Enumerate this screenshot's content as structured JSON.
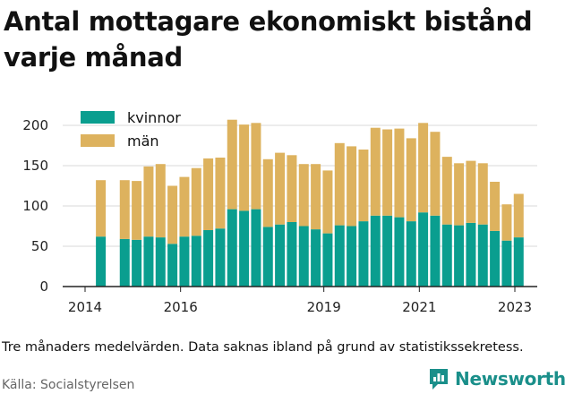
{
  "title": "Antal mottagare ekonomiskt bistånd varje månad",
  "note": "Tre månaders medelvärden. Data saknas ibland på grund av statistikssekretess.",
  "source": "Källa: Socialstyrelsen",
  "brand": {
    "name": "Newsworthy",
    "color": "#1a8f8a"
  },
  "colors": {
    "kvinnor": "#0a9e8f",
    "man": "#ddb25e",
    "grid": "#d9d9d9",
    "axis": "#222222"
  },
  "chart_data": {
    "type": "bar",
    "stacked": true,
    "x_ticks": [
      {
        "label": "2014",
        "year": 2014.0
      },
      {
        "label": "2016",
        "year": 2016.0
      },
      {
        "label": "2019",
        "year": 2019.0
      },
      {
        "label": "2021",
        "year": 2021.0
      },
      {
        "label": "2023",
        "year": 2023.0
      }
    ],
    "y_ticks": [
      0,
      50,
      100,
      150,
      200
    ],
    "ylim": [
      0,
      215
    ],
    "xlim": [
      2014.0,
      2023.4
    ],
    "legend": {
      "position": "top-left",
      "entries": [
        "kvinnor",
        "män"
      ]
    },
    "series": [
      {
        "name": "kvinnor",
        "color": "#0a9e8f",
        "values": [
          62,
          59,
          58,
          62,
          61,
          53,
          62,
          63,
          70,
          72,
          96,
          94,
          96,
          74,
          77,
          80,
          75,
          71,
          66,
          76,
          75,
          81,
          88,
          88,
          86,
          81,
          92,
          88,
          77,
          76,
          79,
          77,
          69,
          57,
          61
        ]
      },
      {
        "name": "män",
        "color": "#ddb25e",
        "values": [
          70,
          73,
          73,
          87,
          91,
          72,
          74,
          84,
          89,
          88,
          111,
          107,
          107,
          84,
          89,
          83,
          77,
          81,
          78,
          102,
          99,
          89,
          109,
          107,
          110,
          103,
          111,
          104,
          84,
          77,
          77,
          76,
          61,
          45,
          54
        ]
      }
    ],
    "x": [
      2014.33,
      2014.83,
      2015.08,
      2015.33,
      2015.58,
      2015.83,
      2016.08,
      2016.33,
      2016.58,
      2016.83,
      2017.08,
      2017.33,
      2017.58,
      2017.83,
      2018.08,
      2018.33,
      2018.58,
      2018.83,
      2019.08,
      2019.33,
      2019.58,
      2019.83,
      2020.08,
      2020.33,
      2020.58,
      2020.83,
      2021.08,
      2021.33,
      2021.58,
      2021.83,
      2022.08,
      2022.33,
      2022.58,
      2022.83,
      2023.08
    ]
  }
}
